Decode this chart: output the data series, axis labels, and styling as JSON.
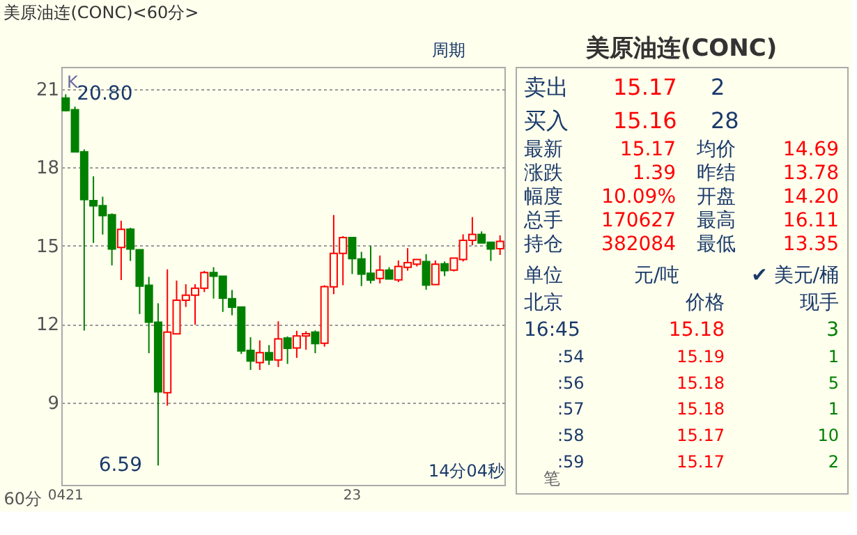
{
  "chart_data": [
    {
      "type": "candlestick",
      "title": "美原油连(CONC)<60分>",
      "categories": [
        "0421",
        null,
        null,
        null,
        null,
        null,
        null,
        null,
        null,
        null,
        null,
        null,
        null,
        null,
        null,
        null,
        null,
        null,
        null,
        null,
        null,
        null,
        null,
        null,
        null,
        null,
        null,
        null,
        null,
        null,
        null,
        "23",
        null,
        null,
        null,
        null,
        null,
        null,
        null,
        null,
        null,
        null,
        null,
        null,
        null,
        null,
        null,
        null
      ],
      "ohlc": [
        [
          20.66,
          20.8,
          20.15,
          20.18
        ],
        [
          20.21,
          20.33,
          18.6,
          18.6
        ],
        [
          18.6,
          18.69,
          11.76,
          16.77
        ],
        [
          16.73,
          17.66,
          15.11,
          16.53
        ],
        [
          16.54,
          16.88,
          15.43,
          16.16
        ],
        [
          16.19,
          16.24,
          14.25,
          14.88
        ],
        [
          14.94,
          15.96,
          13.69,
          15.63
        ],
        [
          15.64,
          15.69,
          14.42,
          14.88
        ],
        [
          14.85,
          14.85,
          12.39,
          13.46
        ],
        [
          13.49,
          13.81,
          10.89,
          12.08
        ],
        [
          12.08,
          12.8,
          6.59,
          9.41
        ],
        [
          9.38,
          14.1,
          8.88,
          11.7
        ],
        [
          11.63,
          13.67,
          11.63,
          12.92
        ],
        [
          12.92,
          13.53,
          12.66,
          13.11
        ],
        [
          13.11,
          13.53,
          11.98,
          13.38
        ],
        [
          13.38,
          14.04,
          13.23,
          13.98
        ],
        [
          13.98,
          14.18,
          12.98,
          13.84
        ],
        [
          13.84,
          13.84,
          12.47,
          13.0
        ],
        [
          12.98,
          13.31,
          12.34,
          12.65
        ],
        [
          12.66,
          12.66,
          10.86,
          10.98
        ],
        [
          11.0,
          11.5,
          10.25,
          10.59
        ],
        [
          10.53,
          11.38,
          10.25,
          10.91
        ],
        [
          10.91,
          11.2,
          10.44,
          10.63
        ],
        [
          10.63,
          12.11,
          10.36,
          11.44
        ],
        [
          11.47,
          11.53,
          10.48,
          11.08
        ],
        [
          11.09,
          11.75,
          10.71,
          11.55
        ],
        [
          11.55,
          11.73,
          11.02,
          11.64
        ],
        [
          11.7,
          11.76,
          10.89,
          11.26
        ],
        [
          11.27,
          13.49,
          11.14,
          13.44
        ],
        [
          13.43,
          16.18,
          13.15,
          14.71
        ],
        [
          14.71,
          15.37,
          13.49,
          15.32
        ],
        [
          15.32,
          15.32,
          13.92,
          14.51
        ],
        [
          14.5,
          14.77,
          13.46,
          13.92
        ],
        [
          13.95,
          15.0,
          13.56,
          13.69
        ],
        [
          13.75,
          14.63,
          13.56,
          14.07
        ],
        [
          14.07,
          14.18,
          13.73,
          13.73
        ],
        [
          13.7,
          14.44,
          13.61,
          14.21
        ],
        [
          14.18,
          14.91,
          14.05,
          14.36
        ],
        [
          14.3,
          14.48,
          14.21,
          14.48
        ],
        [
          14.4,
          14.68,
          13.32,
          13.5
        ],
        [
          13.52,
          14.44,
          13.52,
          14.3
        ],
        [
          14.31,
          14.4,
          13.84,
          14.05
        ],
        [
          14.07,
          14.53,
          14.02,
          14.53
        ],
        [
          14.48,
          15.44,
          14.4,
          15.21
        ],
        [
          15.21,
          16.1,
          15.02,
          15.44
        ],
        [
          15.44,
          15.55,
          15.11,
          15.11
        ],
        [
          15.14,
          15.14,
          14.42,
          14.88
        ],
        [
          14.89,
          15.4,
          14.65,
          15.17
        ]
      ],
      "colors": [
        "#008000",
        "#008000",
        "#008000",
        "#008000",
        "#008000",
        "#008000",
        "#ff0000",
        "#008000",
        "#008000",
        "#008000",
        "#008000",
        "#ff0000",
        "#ff0000",
        "#ff0000",
        "#ff0000",
        "#ff0000",
        "#008000",
        "#008000",
        "#008000",
        "#008000",
        "#008000",
        "#ff0000",
        "#008000",
        "#ff0000",
        "#008000",
        "#ff0000",
        "#ff0000",
        "#008000",
        "#ff0000",
        "#ff0000",
        "#ff0000",
        "#008000",
        "#008000",
        "#008000",
        "#ff0000",
        "#008000",
        "#ff0000",
        "#ff0000",
        "#ff0000",
        "#008000",
        "#ff0000",
        "#008000",
        "#ff0000",
        "#ff0000",
        "#ff0000",
        "#008000",
        "#008000",
        "#ff0000"
      ],
      "ylim": [
        5.85,
        21.85
      ],
      "yticks": [
        9,
        12,
        15,
        18,
        21
      ],
      "grid": "y",
      "annotations": [
        {
          "text": "20.80",
          "x": "0421",
          "y": 20.8
        },
        "K",
        "14分04秒",
        "60分",
        "周期",
        "6.59"
      ]
    },
    {
      "type": "other",
      "title": "美原油连(CONC)",
      "annotations": [
        "卖出",
        "15.17",
        "2",
        "买入",
        "15.16",
        "28",
        "最新",
        "15.17",
        "均价",
        "14.69",
        "涨跌",
        "1.39",
        "昨结",
        "13.78",
        "幅度",
        "10.09%",
        "开盘",
        "14.20",
        "总手",
        "170627",
        "最高",
        "16.11",
        "持仓",
        "382084",
        "最低",
        "13.35",
        "单位",
        "元/吨",
        "✔ 美元/桶",
        "北京",
        "价格",
        "现手",
        "16:45",
        "15.18",
        "3",
        ":54",
        "15.19",
        "1",
        ":56",
        "15.18",
        "5",
        ":57",
        "15.18",
        "1",
        ":58",
        "15.17",
        "10",
        ":59",
        "15.17",
        "2",
        "笔"
      ]
    }
  ]
}
